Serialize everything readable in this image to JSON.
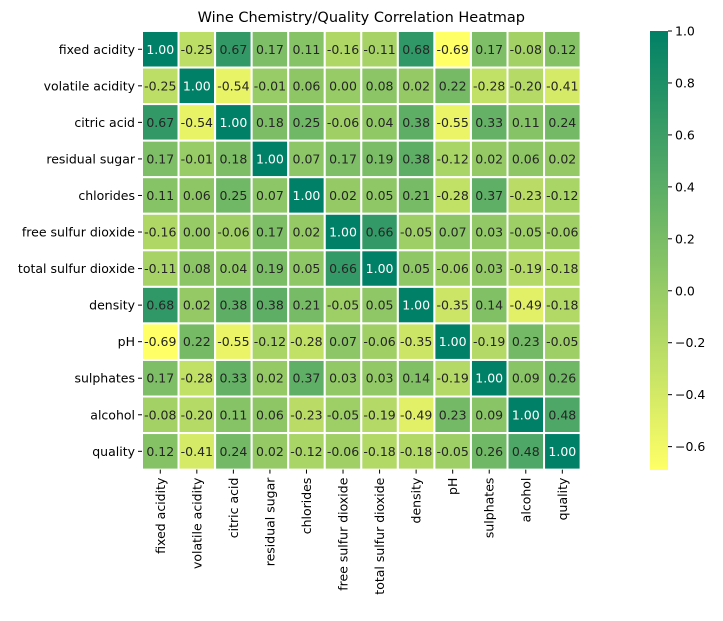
{
  "chart_data": {
    "type": "heatmap",
    "title": "Wine Chemistry/Quality Correlation Heatmap",
    "xlabel": "",
    "ylabel": "",
    "variables": [
      "fixed acidity",
      "volatile acidity",
      "citric acid",
      "residual sugar",
      "chlorides",
      "free sulfur dioxide",
      "total sulfur dioxide",
      "density",
      "pH",
      "sulphates",
      "alcohol",
      "quality"
    ],
    "values": [
      [
        1.0,
        -0.25,
        0.67,
        0.17,
        0.11,
        -0.16,
        -0.11,
        0.68,
        -0.69,
        0.17,
        -0.08,
        0.12
      ],
      [
        -0.25,
        1.0,
        -0.54,
        -0.01,
        0.06,
        -0.0,
        0.08,
        0.02,
        0.22,
        -0.28,
        -0.2,
        -0.41
      ],
      [
        0.67,
        -0.54,
        1.0,
        0.18,
        0.25,
        -0.06,
        0.04,
        0.38,
        -0.55,
        0.33,
        0.11,
        0.24
      ],
      [
        0.17,
        -0.01,
        0.18,
        1.0,
        0.07,
        0.17,
        0.19,
        0.38,
        -0.12,
        0.02,
        0.06,
        0.02
      ],
      [
        0.11,
        0.06,
        0.25,
        0.07,
        1.0,
        0.02,
        0.05,
        0.21,
        -0.28,
        0.37,
        -0.23,
        -0.12
      ],
      [
        -0.16,
        -0.0,
        -0.06,
        0.17,
        0.02,
        1.0,
        0.66,
        -0.05,
        0.07,
        0.03,
        -0.05,
        -0.06
      ],
      [
        -0.11,
        0.08,
        0.04,
        0.19,
        0.05,
        0.66,
        1.0,
        0.05,
        -0.06,
        0.03,
        -0.19,
        -0.18
      ],
      [
        0.68,
        0.02,
        0.38,
        0.38,
        0.21,
        -0.05,
        0.05,
        1.0,
        -0.35,
        0.14,
        -0.49,
        -0.18
      ],
      [
        -0.69,
        0.22,
        -0.55,
        -0.12,
        -0.28,
        0.07,
        -0.06,
        -0.35,
        1.0,
        -0.19,
        0.23,
        -0.05
      ],
      [
        0.17,
        -0.28,
        0.33,
        0.02,
        0.37,
        0.03,
        0.03,
        0.14,
        -0.19,
        1.0,
        0.09,
        0.26
      ],
      [
        -0.08,
        -0.2,
        0.11,
        0.06,
        -0.23,
        -0.05,
        -0.19,
        -0.49,
        0.23,
        0.09,
        1.0,
        0.48
      ],
      [
        0.12,
        -0.41,
        0.24,
        0.02,
        -0.12,
        -0.06,
        -0.18,
        -0.18,
        -0.05,
        0.26,
        0.48,
        1.0
      ]
    ],
    "value_format": "2 decimals",
    "colorbar": {
      "min": -0.69,
      "max": 1.0,
      "ticks": [
        1.0,
        0.8,
        0.6,
        0.4,
        0.2,
        0.0,
        -0.2,
        -0.4,
        -0.6
      ],
      "tick_labels": [
        "1.0",
        "0.8",
        "0.6",
        "0.4",
        "0.2",
        "0.0",
        "−0.2",
        "−0.4",
        "−0.6"
      ],
      "colormap": "summer_r",
      "color_low": "#ffff66",
      "color_high": "#008066"
    },
    "grid_lines": "white"
  }
}
